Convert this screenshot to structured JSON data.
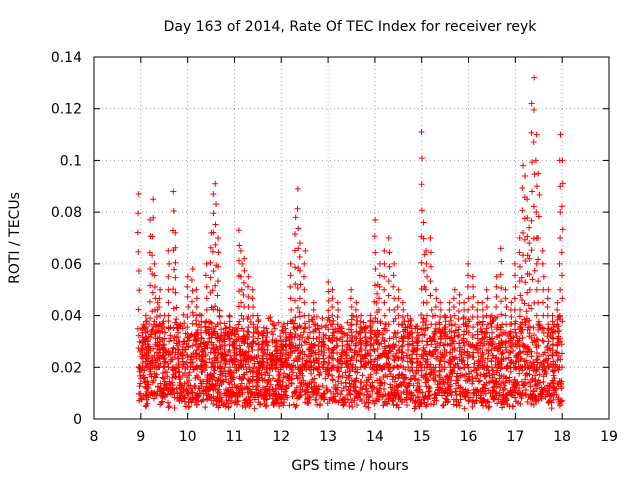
{
  "chart_data": {
    "type": "scatter",
    "title": "Day 163 of 2014, Rate Of TEC Index for receiver reyk",
    "xlabel": "GPS time / hours",
    "ylabel": "ROTI / TECUs",
    "xlim": [
      8,
      19
    ],
    "ylim": [
      0,
      0.14
    ],
    "xticks": [
      "8",
      "9",
      "10",
      "11",
      "12",
      "13",
      "14",
      "15",
      "16",
      "17",
      "18",
      "19"
    ],
    "yticks": [
      "0",
      "0.02",
      "0.04",
      "0.06",
      "0.08",
      "0.1",
      "0.12",
      "0.14"
    ],
    "grid": true,
    "marker": "+",
    "series": [
      {
        "name": "ROTI",
        "color": "#ff0000",
        "x": [
          8.95,
          8.97,
          9.05,
          9.1,
          9.15,
          9.2,
          9.25,
          9.3,
          9.35,
          9.4,
          9.5,
          9.6,
          9.7,
          9.75,
          9.8,
          9.9,
          10.0,
          10.1,
          10.2,
          10.3,
          10.4,
          10.5,
          10.55,
          10.6,
          10.65,
          10.7,
          10.8,
          10.9,
          11.0,
          11.1,
          11.15,
          11.2,
          11.3,
          11.4,
          11.5,
          11.6,
          11.7,
          11.8,
          11.9,
          12.0,
          12.1,
          12.2,
          12.3,
          12.35,
          12.4,
          12.5,
          12.6,
          12.7,
          12.8,
          12.9,
          13.0,
          13.1,
          13.2,
          13.3,
          13.4,
          13.5,
          13.6,
          13.7,
          13.8,
          13.9,
          14.0,
          14.05,
          14.1,
          14.2,
          14.3,
          14.4,
          14.5,
          14.6,
          14.7,
          14.8,
          14.9,
          15.0,
          15.05,
          15.1,
          15.2,
          15.3,
          15.4,
          15.5,
          15.6,
          15.7,
          15.8,
          15.9,
          16.0,
          16.1,
          16.2,
          16.3,
          16.4,
          16.5,
          16.6,
          16.7,
          16.8,
          16.9,
          17.0,
          17.1,
          17.15,
          17.2,
          17.25,
          17.3,
          17.35,
          17.4,
          17.45,
          17.5,
          17.6,
          17.7,
          17.8,
          17.9,
          17.95,
          18.0
        ],
        "y": [
          0.087,
          0.02,
          0.035,
          0.04,
          0.03,
          0.077,
          0.085,
          0.06,
          0.045,
          0.05,
          0.04,
          0.065,
          0.088,
          0.072,
          0.035,
          0.03,
          0.055,
          0.058,
          0.05,
          0.04,
          0.06,
          0.072,
          0.087,
          0.091,
          0.07,
          0.042,
          0.035,
          0.04,
          0.03,
          0.073,
          0.065,
          0.062,
          0.055,
          0.05,
          0.04,
          0.03,
          0.035,
          0.025,
          0.028,
          0.03,
          0.035,
          0.06,
          0.078,
          0.089,
          0.068,
          0.065,
          0.04,
          0.045,
          0.035,
          0.03,
          0.053,
          0.05,
          0.045,
          0.035,
          0.03,
          0.05,
          0.045,
          0.04,
          0.035,
          0.04,
          0.077,
          0.052,
          0.06,
          0.065,
          0.07,
          0.06,
          0.05,
          0.045,
          0.04,
          0.035,
          0.035,
          0.111,
          0.076,
          0.065,
          0.07,
          0.05,
          0.045,
          0.04,
          0.045,
          0.05,
          0.048,
          0.045,
          0.06,
          0.055,
          0.045,
          0.045,
          0.05,
          0.04,
          0.055,
          0.066,
          0.05,
          0.045,
          0.06,
          0.07,
          0.098,
          0.094,
          0.085,
          0.074,
          0.122,
          0.132,
          0.11,
          0.095,
          0.065,
          0.05,
          0.04,
          0.045,
          0.11,
          0.1
        ],
        "background_band": {
          "x_range": [
            8.95,
            18.0
          ],
          "y_range": [
            0.004,
            0.035
          ],
          "description": "dense scatter of ROTI values mostly between 0.005 and 0.035 TECU/min"
        }
      }
    ]
  }
}
